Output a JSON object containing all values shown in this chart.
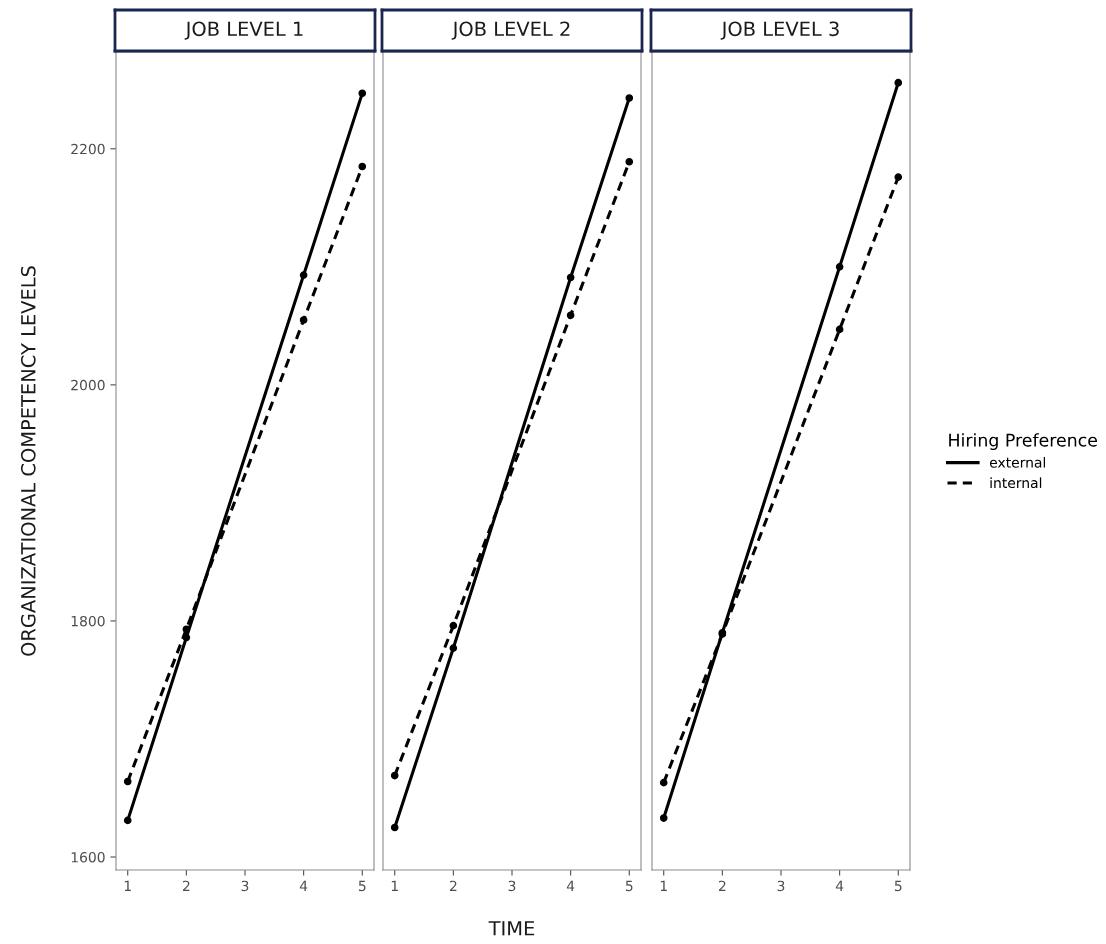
{
  "chart_data": [
    {
      "type": "line",
      "title": "JOB LEVEL 1",
      "ylabel": "ORGANIZATIONAL COMPETENCY LEVELS",
      "xlim": [
        0.8,
        5.2
      ],
      "xticks": [
        1,
        2,
        3,
        4,
        5
      ],
      "ylim": [
        1589,
        2282
      ],
      "yticks": [
        1600,
        1800,
        2000,
        2200
      ],
      "marker": "circle",
      "grid": false,
      "legend": false,
      "series": [
        {
          "color": "#000000",
          "line_style": "solid",
          "x": [
            1,
            2,
            4,
            5
          ],
          "values": [
            1631,
            1786,
            2093,
            2247
          ]
        },
        {
          "color": "#000000",
          "line_style": "dashed",
          "x": [
            1,
            2,
            4,
            5
          ],
          "values": [
            1664,
            1793,
            2055,
            2185
          ]
        }
      ]
    },
    {
      "type": "line",
      "title": "JOB LEVEL 2",
      "xlabel": "TIME",
      "xlim": [
        0.8,
        5.2
      ],
      "xticks": [
        1,
        2,
        3,
        4,
        5
      ],
      "ylim": [
        1589,
        2282
      ],
      "tick_labels": "x",
      "marker": "circle",
      "grid": false,
      "legend": false,
      "series": [
        {
          "color": "#000000",
          "line_style": "solid",
          "x": [
            1,
            2,
            4,
            5
          ],
          "values": [
            1625,
            1777,
            2091,
            2243
          ]
        },
        {
          "color": "#000000",
          "line_style": "dashed",
          "x": [
            1,
            2,
            4,
            5
          ],
          "values": [
            1669,
            1796,
            2059,
            2189
          ]
        }
      ]
    },
    {
      "type": "line",
      "title": "JOB LEVEL 3",
      "legend_title": "Hiring Preference",
      "xlim": [
        0.8,
        5.2
      ],
      "xticks": [
        1,
        2,
        3,
        4,
        5
      ],
      "ylim": [
        1589,
        2282
      ],
      "tick_labels": "x",
      "marker": "circle",
      "grid": false,
      "legend": "right",
      "series": [
        {
          "name": "external",
          "color": "#000000",
          "line_style": "solid",
          "x": [
            1,
            2,
            4,
            5
          ],
          "values": [
            1633,
            1790,
            2100,
            2256
          ]
        },
        {
          "name": "internal",
          "color": "#000000",
          "line_style": "dashed",
          "x": [
            1,
            2,
            4,
            5
          ],
          "values": [
            1663,
            1789,
            2047,
            2176
          ]
        }
      ]
    }
  ]
}
